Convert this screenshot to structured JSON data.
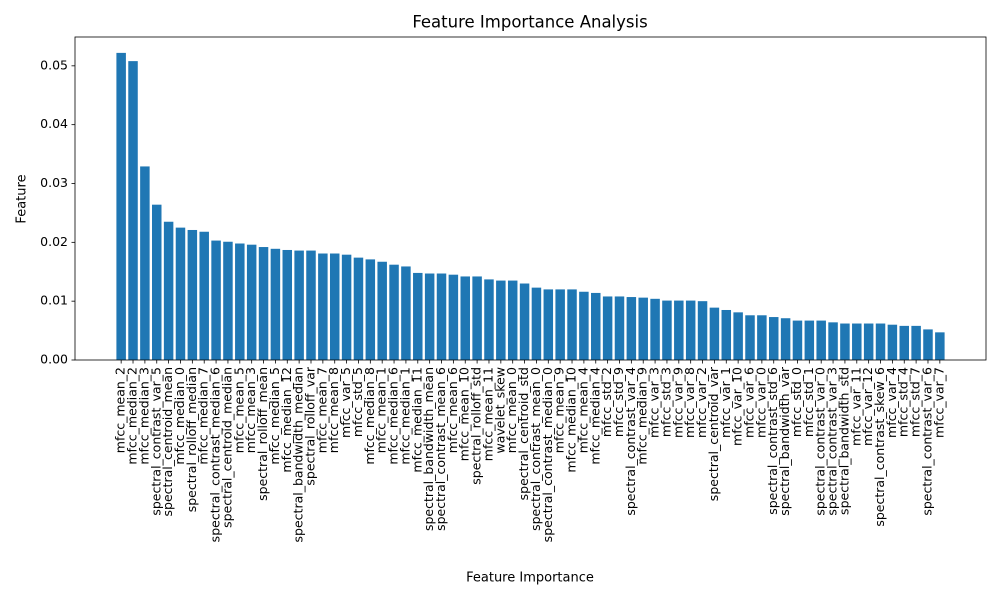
{
  "chart_data": {
    "type": "bar",
    "title": "Feature Importance Analysis",
    "x_label": "Feature Importance",
    "y_label": "Feature",
    "color": "#1f77b4",
    "categories": [
      "mfcc_mean_2",
      "mfcc_median_2",
      "mfcc_median_3",
      "spectral_contrast_var_5",
      "spectral_centroid_mean",
      "mfcc_median_0",
      "spectral_rolloff_median",
      "mfcc_median_7",
      "spectral_contrast_median_6",
      "spectral_centroid_median",
      "mfcc_mean_5",
      "mfcc_mean_3",
      "spectral_rolloff_mean",
      "mfcc_median_5",
      "mfcc_median_12",
      "spectral_bandwidth_median",
      "spectral_rolloff_var",
      "mfcc_mean_7",
      "mfcc_mean_8",
      "mfcc_var_5",
      "mfcc_std_5",
      "mfcc_median_8",
      "mfcc_mean_1",
      "mfcc_median_6",
      "mfcc_median_1",
      "mfcc_median_11",
      "spectral_bandwidth_mean",
      "spectral_contrast_mean_6",
      "mfcc_mean_6",
      "mfcc_mean_10",
      "spectral_rolloff_std",
      "mfcc_mean_11",
      "wavelet_skew",
      "mfcc_mean_0",
      "spectral_centroid_std",
      "spectral_contrast_mean_0",
      "spectral_contrast_median_0",
      "mfcc_mean_9",
      "mfcc_median_10",
      "mfcc_mean_4",
      "mfcc_median_4",
      "mfcc_std_2",
      "mfcc_std_9",
      "spectral_contrast_var_4",
      "mfcc_median_9",
      "mfcc_var_3",
      "mfcc_std_3",
      "mfcc_var_9",
      "mfcc_var_8",
      "mfcc_var_2",
      "spectral_centroid_var",
      "mfcc_var_1",
      "mfcc_var_10",
      "mfcc_var_6",
      "mfcc_var_0",
      "spectral_contrast_std_6",
      "spectral_bandwidth_var",
      "mfcc_std_0",
      "mfcc_std_1",
      "spectral_contrast_var_0",
      "spectral_contrast_var_3",
      "spectral_bandwidth_std",
      "mfcc_var_11",
      "mfcc_var_12",
      "spectral_contrast_skew_6",
      "mfcc_var_4",
      "mfcc_std_4",
      "mfcc_std_7",
      "spectral_contrast_var_6",
      "mfcc_var_7"
    ],
    "values": [
      0.0522,
      0.0508,
      0.0329,
      0.0264,
      0.0235,
      0.0225,
      0.0221,
      0.0218,
      0.0203,
      0.0201,
      0.0198,
      0.0196,
      0.0192,
      0.0189,
      0.0187,
      0.0186,
      0.0186,
      0.0181,
      0.0181,
      0.0179,
      0.0174,
      0.0171,
      0.0167,
      0.0162,
      0.0159,
      0.0148,
      0.0147,
      0.0147,
      0.0145,
      0.0142,
      0.0142,
      0.0137,
      0.0135,
      0.0135,
      0.013,
      0.0123,
      0.012,
      0.012,
      0.012,
      0.0116,
      0.0114,
      0.0108,
      0.0108,
      0.0107,
      0.0106,
      0.0104,
      0.0101,
      0.0101,
      0.0101,
      0.01,
      0.0089,
      0.0085,
      0.0081,
      0.0076,
      0.0076,
      0.0073,
      0.0071,
      0.0067,
      0.0067,
      0.0067,
      0.0064,
      0.0062,
      0.0062,
      0.0062,
      0.0062,
      0.006,
      0.0058,
      0.0058,
      0.0052,
      0.0047
    ],
    "ylim": [
      0,
      0.0549
    ],
    "yticks": [
      {
        "value": 0,
        "label": "0.00"
      },
      {
        "value": 0.01,
        "label": "0.01"
      },
      {
        "value": 0.02,
        "label": "0.02"
      },
      {
        "value": 0.03,
        "label": "0.03"
      },
      {
        "value": 0.04,
        "label": "0.04"
      },
      {
        "value": 0.05,
        "label": "0.05"
      }
    ]
  }
}
